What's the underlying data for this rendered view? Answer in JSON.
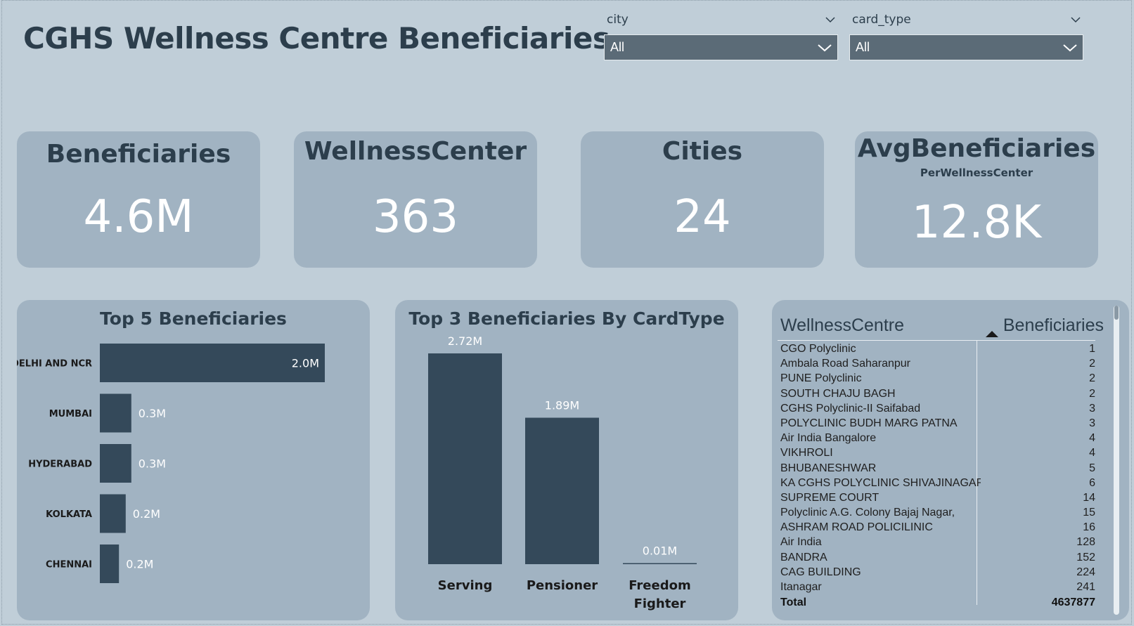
{
  "title": "CGHS Wellness Centre Beneficiaries",
  "filters": [
    {
      "label": "city",
      "value": "All"
    },
    {
      "label": "card_type",
      "value": "All"
    }
  ],
  "kpis": [
    {
      "title": "Beneficiaries",
      "subtitle": "",
      "value": "4.6M"
    },
    {
      "title": "WellnessCenter",
      "subtitle": "",
      "value": "363"
    },
    {
      "title": "Cities",
      "subtitle": "",
      "value": "24"
    },
    {
      "title": "AvgBeneficiaries",
      "subtitle": "PerWellnessCenter",
      "value": "12.8K"
    }
  ],
  "chart_data": [
    {
      "type": "bar",
      "orientation": "horizontal",
      "title": "Top 5 Beneficiaries",
      "categories": [
        "DELHI AND NCR",
        "MUMBAI",
        "HYDERABAD",
        "KOLKATA",
        "CHENNAI"
      ],
      "values": [
        2.0,
        0.28,
        0.28,
        0.23,
        0.17
      ],
      "labels": [
        "2.0M",
        "0.3M",
        "0.3M",
        "0.2M",
        "0.2M"
      ],
      "xlim": [
        0,
        2.0
      ],
      "grid": false,
      "color": "#34495a"
    },
    {
      "type": "bar",
      "orientation": "vertical",
      "title": "Top 3 Beneficiaries By CardType",
      "categories": [
        "Serving",
        "Pensioner",
        "Freedom Fighter"
      ],
      "values": [
        2.72,
        1.89,
        0.01
      ],
      "labels": [
        "2.72M",
        "1.89M",
        "0.01M"
      ],
      "ylim": [
        0,
        2.72
      ],
      "grid": false,
      "color": "#34495a"
    }
  ],
  "table": {
    "headers": [
      "WellnessCentre",
      "Beneficiaries"
    ],
    "rows": [
      [
        "CGO Polyclinic",
        "1"
      ],
      [
        "Ambala Road Saharanpur",
        "2"
      ],
      [
        "PUNE Polyclinic",
        "2"
      ],
      [
        "SOUTH CHAJU BAGH",
        "2"
      ],
      [
        "CGHS Polyclinic-II Saifabad",
        "3"
      ],
      [
        "POLYCLINIC BUDH MARG PATNA",
        "3"
      ],
      [
        "Air India Bangalore",
        "4"
      ],
      [
        "VIKHROLI",
        "4"
      ],
      [
        "BHUBANESHWAR",
        "5"
      ],
      [
        "KA CGHS POLYCLINIC SHIVAJINAGAR",
        "6"
      ],
      [
        "SUPREME COURT",
        "14"
      ],
      [
        "Polyclinic A.G. Colony Bajaj Nagar,",
        "15"
      ],
      [
        "ASHRAM ROAD POLICILINIC",
        "16"
      ],
      [
        "Air India",
        "128"
      ],
      [
        "BANDRA",
        "152"
      ],
      [
        "CAG BUILDING",
        "224"
      ],
      [
        "Itanagar",
        "241"
      ]
    ],
    "total_label": "Total",
    "total_value": "4637877"
  }
}
